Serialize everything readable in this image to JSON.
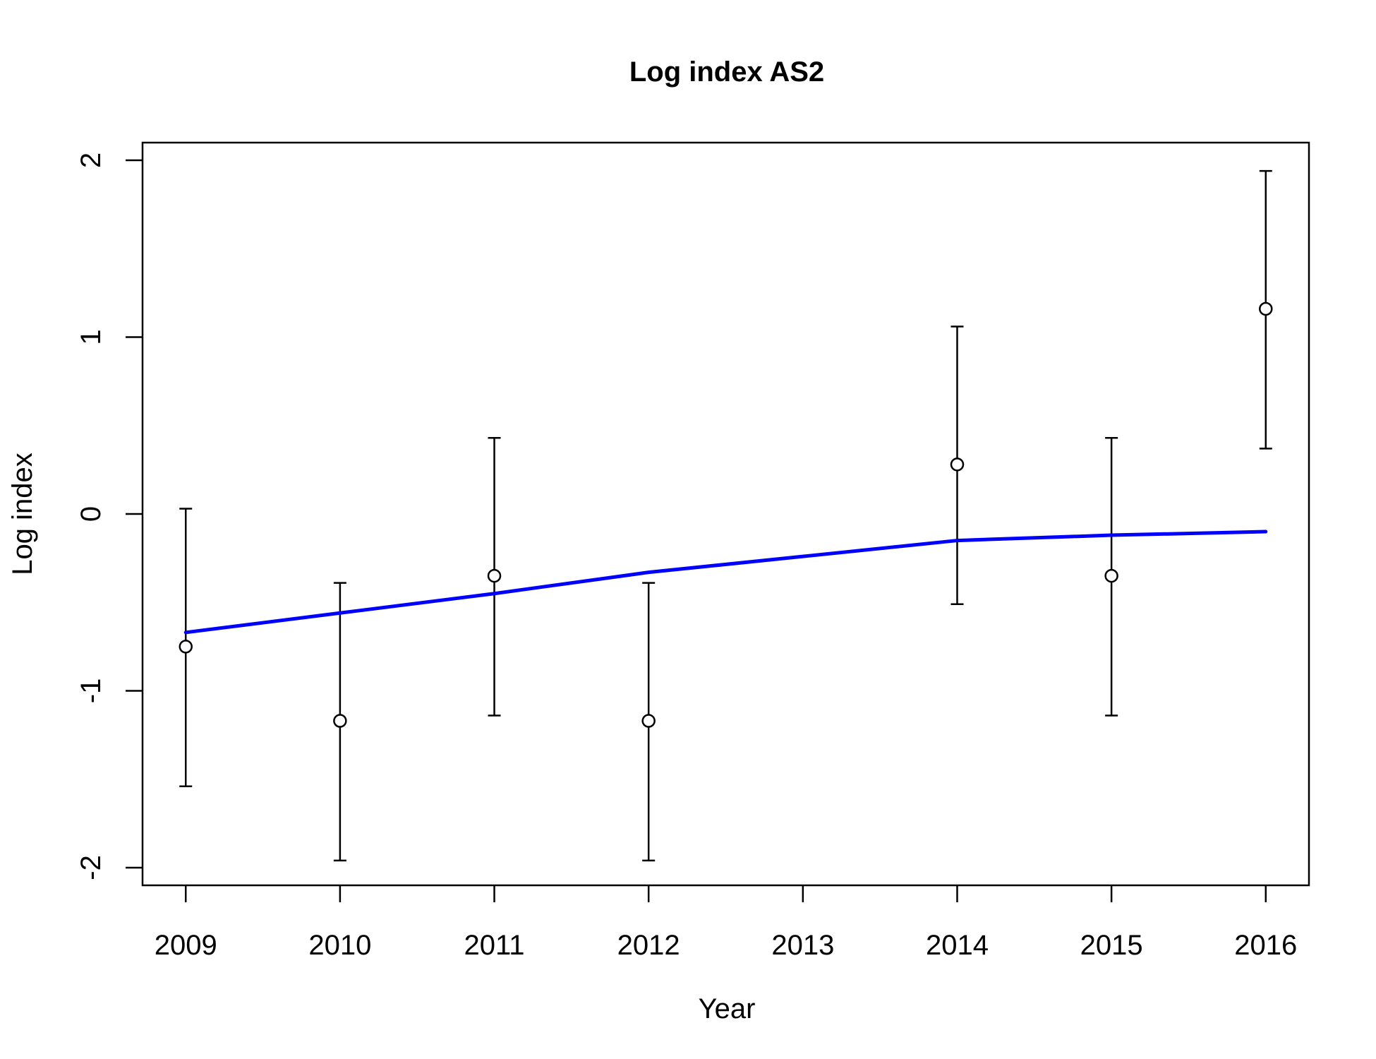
{
  "chart_data": {
    "type": "scatter",
    "title": "Log index AS2",
    "xlabel": "Year",
    "ylabel": "Log index",
    "xlim": [
      2008.72,
      2016.28
    ],
    "ylim": [
      -2.1,
      2.1
    ],
    "x_ticks": [
      2009,
      2010,
      2011,
      2012,
      2013,
      2014,
      2015,
      2016
    ],
    "y_ticks": [
      -2,
      -1,
      0,
      1,
      2
    ],
    "grid": false,
    "observed": {
      "x": [
        2009,
        2010,
        2011,
        2012,
        2014,
        2015,
        2016
      ],
      "y": [
        -0.75,
        -1.17,
        -0.35,
        -1.17,
        0.28,
        -0.35,
        1.16
      ],
      "lower": [
        -1.54,
        -1.96,
        -1.14,
        -1.96,
        -0.51,
        -1.14,
        0.37
      ],
      "upper": [
        0.03,
        -0.39,
        0.43,
        -0.39,
        1.06,
        0.43,
        1.94
      ]
    },
    "fitted": {
      "x": [
        2009,
        2010,
        2011,
        2012,
        2013,
        2014,
        2015,
        2016
      ],
      "y": [
        -0.67,
        -0.56,
        -0.45,
        -0.33,
        -0.24,
        -0.15,
        -0.12,
        -0.1
      ],
      "color": "#0000FF"
    }
  }
}
